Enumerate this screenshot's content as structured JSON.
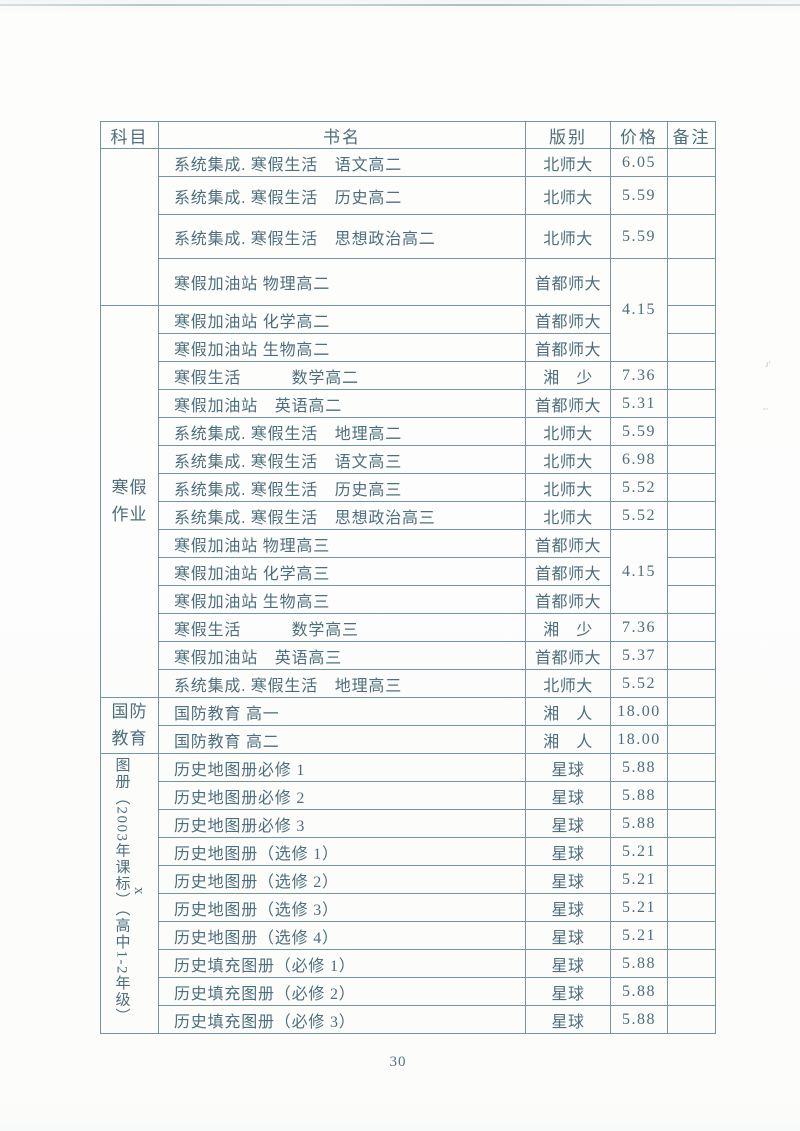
{
  "page_number": "30",
  "colors": {
    "ink": "#4e6e7c",
    "border": "#74949e",
    "background": "#fdfdfc"
  },
  "table": {
    "columns": [
      {
        "key": "subject",
        "label": "科目"
      },
      {
        "key": "title",
        "label": "书名"
      },
      {
        "key": "publisher",
        "label": "版别"
      },
      {
        "key": "price",
        "label": "价格"
      },
      {
        "key": "note",
        "label": "备注"
      }
    ],
    "subject_groups": [
      {
        "label": "",
        "rows": 4,
        "orientation": "horizontal"
      },
      {
        "label": "寒假作业",
        "rows": 14,
        "orientation": "horizontal"
      },
      {
        "label": "国防教育",
        "rows": 2,
        "orientation": "horizontal"
      },
      {
        "label": "图册（2003年课标）（高中1-2年级）x",
        "rows": 10,
        "orientation": "vertical"
      }
    ],
    "price_merges": [
      {
        "start": 3,
        "span": 3,
        "value": "4.15"
      },
      {
        "start": 12,
        "span": 3,
        "value": "4.15"
      }
    ],
    "rows": [
      {
        "title": "系统集成. 寒假生活　语文高二",
        "publisher": "北师大",
        "price": "6.05",
        "note": ""
      },
      {
        "title": "系统集成. 寒假生活　历史高二",
        "publisher": "北师大",
        "price": "5.59",
        "note": ""
      },
      {
        "title": "系统集成. 寒假生活　思想政治高二",
        "publisher": "北师大",
        "price": "5.59",
        "note": ""
      },
      {
        "title": "寒假加油站 物理高二",
        "publisher": "首都师大",
        "price": "",
        "note": ""
      },
      {
        "title": "寒假加油站 化学高二",
        "publisher": "首都师大",
        "price": "",
        "note": ""
      },
      {
        "title": "寒假加油站 生物高二",
        "publisher": "首都师大",
        "price": "",
        "note": ""
      },
      {
        "title": "寒假生活　　　数学高二",
        "publisher": "湘　少",
        "price": "7.36",
        "note": ""
      },
      {
        "title": "寒假加油站　英语高二",
        "publisher": "首都师大",
        "price": "5.31",
        "note": ""
      },
      {
        "title": "系统集成. 寒假生活　地理高二",
        "publisher": "北师大",
        "price": "5.59",
        "note": ""
      },
      {
        "title": "系统集成. 寒假生活　语文高三",
        "publisher": "北师大",
        "price": "6.98",
        "note": ""
      },
      {
        "title": "系统集成. 寒假生活　历史高三",
        "publisher": "北师大",
        "price": "5.52",
        "note": ""
      },
      {
        "title": "系统集成. 寒假生活　思想政治高三",
        "publisher": "北师大",
        "price": "5.52",
        "note": ""
      },
      {
        "title": "寒假加油站 物理高三",
        "publisher": "首都师大",
        "price": "",
        "note": ""
      },
      {
        "title": "寒假加油站 化学高三",
        "publisher": "首都师大",
        "price": "",
        "note": ""
      },
      {
        "title": "寒假加油站 生物高三",
        "publisher": "首都师大",
        "price": "",
        "note": ""
      },
      {
        "title": "寒假生活　　　数学高三",
        "publisher": "湘　少",
        "price": "7.36",
        "note": ""
      },
      {
        "title": "寒假加油站　英语高三",
        "publisher": "首都师大",
        "price": "5.37",
        "note": ""
      },
      {
        "title": "系统集成. 寒假生活　地理高三",
        "publisher": "北师大",
        "price": "5.52",
        "note": ""
      },
      {
        "title": "国防教育 高一",
        "publisher": "湘　人",
        "price": "18.00",
        "note": ""
      },
      {
        "title": "国防教育 高二",
        "publisher": "湘　人",
        "price": "18.00",
        "note": ""
      },
      {
        "title": "历史地图册必修 1",
        "publisher": "星球",
        "price": "5.88",
        "note": ""
      },
      {
        "title": "历史地图册必修 2",
        "publisher": "星球",
        "price": "5.88",
        "note": ""
      },
      {
        "title": "历史地图册必修 3",
        "publisher": "星球",
        "price": "5.88",
        "note": ""
      },
      {
        "title": "历史地图册（选修 1）",
        "publisher": "星球",
        "price": "5.21",
        "note": ""
      },
      {
        "title": "历史地图册（选修 2）",
        "publisher": "星球",
        "price": "5.21",
        "note": ""
      },
      {
        "title": "历史地图册（选修 3）",
        "publisher": "星球",
        "price": "5.21",
        "note": ""
      },
      {
        "title": "历史地图册（选修 4）",
        "publisher": "星球",
        "price": "5.21",
        "note": ""
      },
      {
        "title": "历史填充图册（必修 1）",
        "publisher": "星球",
        "price": "5.88",
        "note": ""
      },
      {
        "title": "历史填充图册（必修 2）",
        "publisher": "星球",
        "price": "5.88",
        "note": ""
      },
      {
        "title": "历史填充图册（必修 3）",
        "publisher": "星球",
        "price": "5.88",
        "note": ""
      }
    ]
  }
}
